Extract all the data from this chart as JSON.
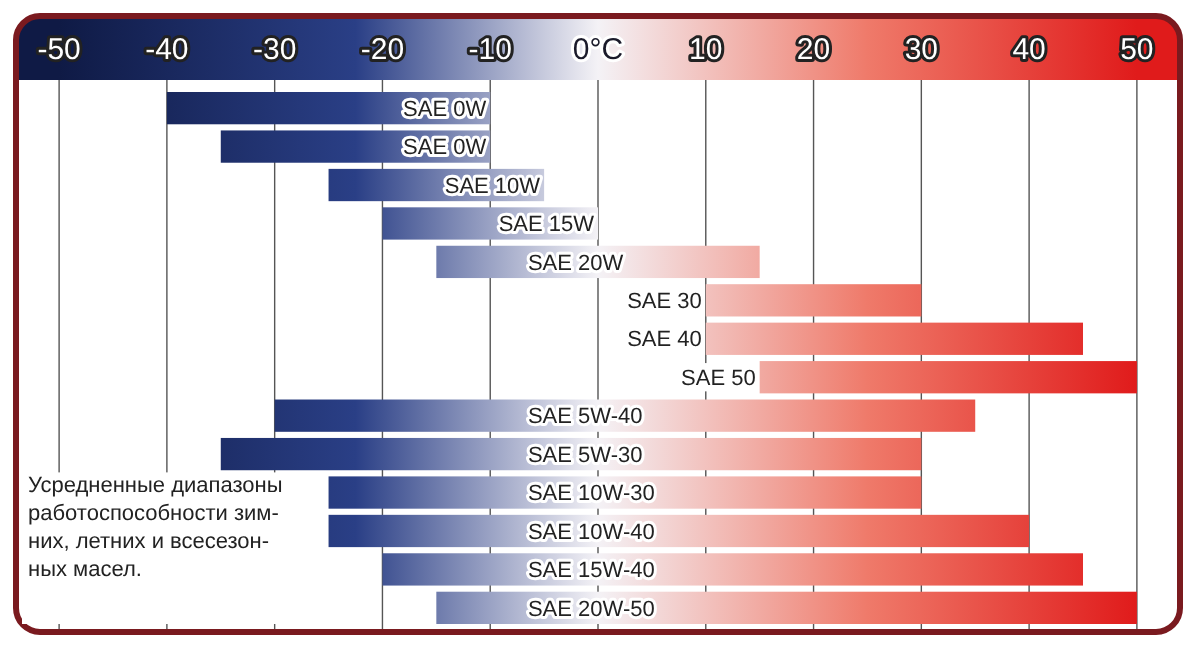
{
  "chart_data": {
    "type": "bar",
    "orientation": "horizontal",
    "categories": [
      "SAE 0W",
      "SAE 0W",
      "SAE 10W",
      "SAE 15W",
      "SAE 20W",
      "SAE 30",
      "SAE 40",
      "SAE 50",
      "SAE 5W-40",
      "SAE 5W-30",
      "SAE 10W-30",
      "SAE 10W-40",
      "SAE 15W-40",
      "SAE 20W-50"
    ],
    "base": [
      -40,
      -35,
      -25,
      -20,
      -15,
      10,
      10,
      15,
      -30,
      -35,
      -25,
      -25,
      -20,
      -15
    ],
    "values": [
      30,
      25,
      20,
      20,
      30,
      20,
      35,
      35,
      65,
      65,
      55,
      65,
      65,
      65
    ],
    "xlim": [
      -54,
      54
    ],
    "xticks": [
      -50,
      -40,
      -30,
      -20,
      -10,
      {
        "value": 0,
        "label": "0°C"
      },
      10,
      20,
      30,
      40,
      50
    ],
    "grid": "x",
    "annotations": [
      "Усредненные диапазоны\nработоспособности зим-\nних, летних и всесезон-\nных масел."
    ]
  }
}
